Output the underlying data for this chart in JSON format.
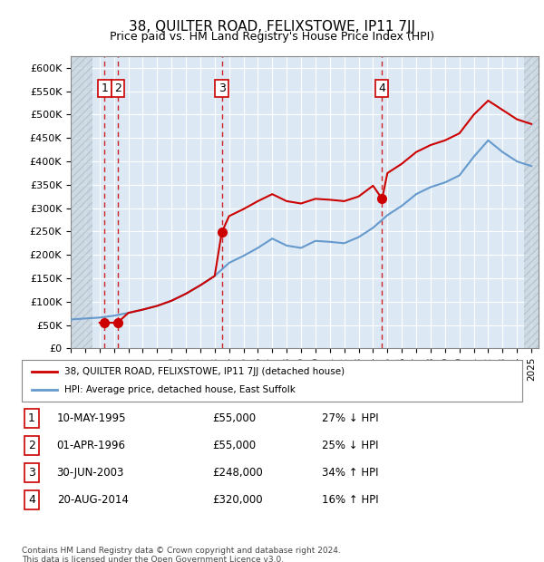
{
  "title": "38, QUILTER ROAD, FELIXSTOWE, IP11 7JJ",
  "subtitle": "Price paid vs. HM Land Registry's House Price Index (HPI)",
  "ylabel": "",
  "ylim": [
    0,
    625000
  ],
  "yticks": [
    0,
    50000,
    100000,
    150000,
    200000,
    250000,
    300000,
    350000,
    400000,
    450000,
    500000,
    550000,
    600000
  ],
  "ytick_labels": [
    "£0",
    "£50K",
    "£100K",
    "£150K",
    "£200K",
    "£250K",
    "£300K",
    "£350K",
    "£400K",
    "£450K",
    "£500K",
    "£550K",
    "£600K"
  ],
  "xlim_start": 1993.0,
  "xlim_end": 2025.5,
  "bg_color": "#dce9f5",
  "hatch_color": "#c0c8d0",
  "line_color_red": "#cc0000",
  "line_color_blue": "#6699cc",
  "dot_color": "#cc0000",
  "vline_color": "#cc0000",
  "transaction_dates": [
    1995.36,
    1996.25,
    2003.49,
    2014.63
  ],
  "transaction_prices": [
    55000,
    55000,
    248000,
    320000
  ],
  "transaction_labels": [
    "1",
    "2",
    "3",
    "4"
  ],
  "legend_line1": "38, QUILTER ROAD, FELIXSTOWE, IP11 7JJ (detached house)",
  "legend_line2": "HPI: Average price, detached house, East Suffolk",
  "table_data": [
    [
      "1",
      "10-MAY-1995",
      "£55,000",
      "27% ↓ HPI"
    ],
    [
      "2",
      "01-APR-1996",
      "£55,000",
      "25% ↓ HPI"
    ],
    [
      "3",
      "30-JUN-2003",
      "£248,000",
      "34% ↑ HPI"
    ],
    [
      "4",
      "20-AUG-2014",
      "£320,000",
      "16% ↑ HPI"
    ]
  ],
  "footer": "Contains HM Land Registry data © Crown copyright and database right 2024.\nThis data is licensed under the Open Government Licence v3.0.",
  "hpi_years": [
    1993,
    1994,
    1995,
    1996,
    1997,
    1998,
    1999,
    2000,
    2001,
    2002,
    2003,
    2004,
    2005,
    2006,
    2007,
    2008,
    2009,
    2010,
    2011,
    2012,
    2013,
    2014,
    2015,
    2016,
    2017,
    2018,
    2019,
    2020,
    2021,
    2022,
    2023,
    2024,
    2025
  ],
  "hpi_values": [
    62000,
    64000,
    66000,
    70000,
    76000,
    83000,
    91000,
    102000,
    117000,
    135000,
    155000,
    183000,
    198000,
    215000,
    235000,
    220000,
    215000,
    230000,
    228000,
    225000,
    238000,
    258000,
    285000,
    305000,
    330000,
    345000,
    355000,
    370000,
    410000,
    445000,
    420000,
    400000,
    390000
  ],
  "red_line_years": [
    1995,
    1995.36,
    1996.25,
    1997,
    1998,
    1999,
    2000,
    2001,
    2002,
    2003,
    2003.49,
    2004,
    2005,
    2006,
    2007,
    2008,
    2009,
    2010,
    2011,
    2012,
    2013,
    2014,
    2014.63,
    2015,
    2016,
    2017,
    2018,
    2019,
    2020,
    2021,
    2022,
    2023,
    2024,
    2025
  ],
  "red_line_values": [
    55000,
    55000,
    55000,
    76000,
    83000,
    91000,
    102000,
    117000,
    135000,
    155000,
    248000,
    283000,
    298000,
    315000,
    330000,
    315000,
    310000,
    320000,
    318000,
    315000,
    325000,
    348000,
    320000,
    375000,
    395000,
    420000,
    435000,
    445000,
    460000,
    500000,
    530000,
    510000,
    490000,
    480000
  ]
}
